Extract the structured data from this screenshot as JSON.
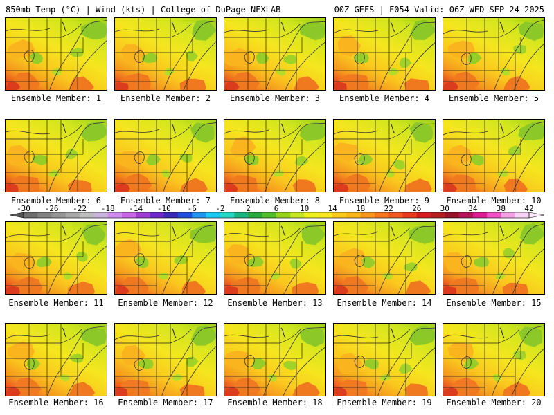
{
  "header": {
    "title": "850mb Temp (°C) | Wind (kts) | College of DuPage NEXLAB",
    "valid": "00Z GEFS | F054 Valid: 06Z WED SEP 24 2025"
  },
  "colorbar": {
    "ticks": [
      "-30",
      "-26",
      "-22",
      "-18",
      "-14",
      "-10",
      "-6",
      "-2",
      "2",
      "6",
      "10",
      "14",
      "18",
      "22",
      "26",
      "30",
      "34",
      "38",
      "42"
    ],
    "colors": [
      "#6e6e6e",
      "#828282",
      "#969696",
      "#aaaaaa",
      "#bebebe",
      "#c8b4dc",
      "#d28cf0",
      "#c864e6",
      "#a03cd2",
      "#6e28c8",
      "#3c2ab4",
      "#1e50dc",
      "#1e96f0",
      "#1ec8f5",
      "#28d7c8",
      "#1eb482",
      "#28aa3c",
      "#50be28",
      "#96d21e",
      "#c8e628",
      "#f0f01e",
      "#fae61e",
      "#fac81e",
      "#fab41e",
      "#fa961e",
      "#f5781e",
      "#f05a1e",
      "#e63c1e",
      "#d21e1e",
      "#b41e1e",
      "#961428",
      "#b4145a",
      "#dc1e96",
      "#f050c8",
      "#f5a0e6",
      "#fad2f5"
    ]
  },
  "members": [
    {
      "label": "Ensemble Member: 1"
    },
    {
      "label": "Ensemble Member: 2"
    },
    {
      "label": "Ensemble Member: 3"
    },
    {
      "label": "Ensemble Member: 4"
    },
    {
      "label": "Ensemble Member: 5"
    },
    {
      "label": "Ensemble Member: 6"
    },
    {
      "label": "Ensemble Member: 7"
    },
    {
      "label": "Ensemble Member: 8"
    },
    {
      "label": "Ensemble Member: 9"
    },
    {
      "label": "Ensemble Member: 10"
    },
    {
      "label": "Ensemble Member: 11"
    },
    {
      "label": "Ensemble Member: 12"
    },
    {
      "label": "Ensemble Member: 13"
    },
    {
      "label": "Ensemble Member: 14"
    },
    {
      "label": "Ensemble Member: 15"
    },
    {
      "label": "Ensemble Member: 16"
    },
    {
      "label": "Ensemble Member: 17"
    },
    {
      "label": "Ensemble Member: 18"
    },
    {
      "label": "Ensemble Member: 19"
    },
    {
      "label": "Ensemble Member: 20"
    }
  ]
}
